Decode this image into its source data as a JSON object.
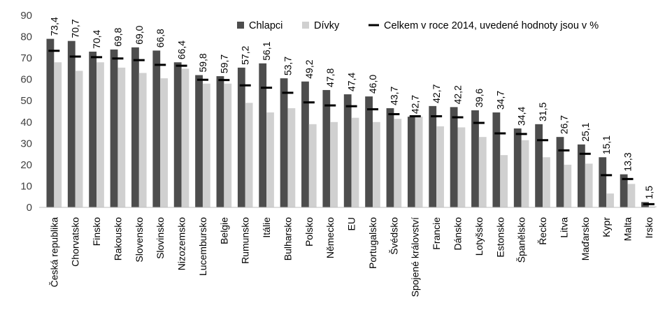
{
  "chart_data": {
    "type": "bar",
    "title": "",
    "xlabel": "",
    "ylabel": "",
    "ylim": [
      0,
      90
    ],
    "yticks": [
      0,
      10,
      20,
      30,
      40,
      50,
      60,
      70,
      80,
      90
    ],
    "grid": false,
    "legend_position": "top-right",
    "categories": [
      "Česká republika",
      "Chorvatsko",
      "Finsko",
      "Rakousko",
      "Slovensko",
      "Slovinsko",
      "Nizozemsko",
      "Lucembursko",
      "Belgie",
      "Rumunsko",
      "Itálie",
      "Bulharsko",
      "Polsko",
      "Německo",
      "EU",
      "Portugalsko",
      "Švédsko",
      "Spojené království",
      "Francie",
      "Dánsko",
      "Lotyšsko",
      "Estonsko",
      "Španělsko",
      "Řecko",
      "Litva",
      "Maďarsko",
      "Kypr",
      "Malta",
      "Irsko"
    ],
    "series": [
      {
        "name": "Chlapci",
        "color": "#4d4d4d",
        "values": [
          79,
          78,
          73,
          74,
          75,
          73.5,
          68,
          62,
          61.5,
          65.5,
          67.5,
          60.5,
          59,
          55,
          53,
          52,
          46.5,
          42.5,
          47.5,
          47,
          45.5,
          44.5,
          37,
          39,
          33,
          29.5,
          23.5,
          15.5,
          2.5
        ]
      },
      {
        "name": "Dívky",
        "color": "#d0d0d0",
        "values": [
          68,
          64,
          68,
          65.5,
          63,
          60.5,
          65,
          58,
          58,
          49,
          44.5,
          46.5,
          39,
          40,
          42,
          40,
          41.5,
          42.5,
          38,
          37.5,
          33,
          24.5,
          31.5,
          23.5,
          20,
          20.5,
          6.5,
          11,
          0.5
        ]
      },
      {
        "name": "Celkem v roce 2014, uvedené hodnoty jsou v %",
        "color": "#000000",
        "marker": "dash",
        "values": [
          73.4,
          70.7,
          70.4,
          69.8,
          69.0,
          66.8,
          66.4,
          59.8,
          59.7,
          57.2,
          56.1,
          53.7,
          49.2,
          47.8,
          47.4,
          46.0,
          43.7,
          42.7,
          42.7,
          42.2,
          39.6,
          34.7,
          34.4,
          31.5,
          26.7,
          25.1,
          15.1,
          13.3,
          1.5
        ]
      }
    ],
    "data_labels": [
      "73,4",
      "70,7",
      "70,4",
      "69,8",
      "69,0",
      "66,8",
      "66,4",
      "59,8",
      "59,7",
      "57,2",
      "56,1",
      "53,7",
      "49,2",
      "47,8",
      "47,4",
      "46,0",
      "43,7",
      "42,7",
      "42,7",
      "42,2",
      "39,6",
      "34,7",
      "34,4",
      "31,5",
      "26,7",
      "25,1",
      "15,1",
      "13,3",
      "1,5"
    ]
  }
}
